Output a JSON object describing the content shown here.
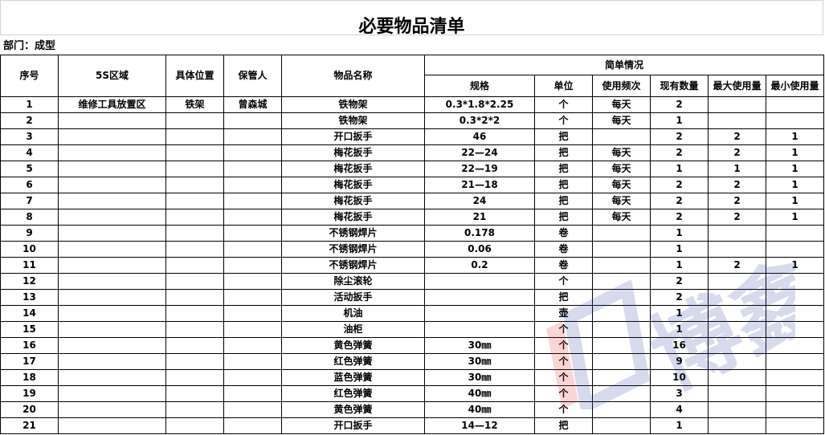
{
  "title": "必要物品清单",
  "department": "部门：成型",
  "headers": {
    "no": "序号",
    "area": "5S区域",
    "location": "具体位置",
    "keeper": "保管人",
    "name": "物品名称",
    "group": "简单情况",
    "spec": "规格",
    "unit": "单位",
    "freq": "使用频次",
    "qty": "现有数量",
    "max": "最大使用量",
    "min": "最小使用量"
  },
  "rows": [
    {
      "no": "1",
      "area": "维修工具放置区",
      "location": "铁架",
      "keeper": "曾森城",
      "name": "铁物架",
      "spec": "0.3*1.8*2.25",
      "unit": "个",
      "freq": "每天",
      "qty": "2",
      "max": "",
      "min": ""
    },
    {
      "no": "2",
      "area": "",
      "location": "",
      "keeper": "",
      "name": "铁物架",
      "spec": "0.3*2*2",
      "unit": "个",
      "freq": "每天",
      "qty": "1",
      "max": "",
      "min": ""
    },
    {
      "no": "3",
      "area": "",
      "location": "",
      "keeper": "",
      "name": "开口扳手",
      "spec": "46",
      "unit": "把",
      "freq": "",
      "qty": "2",
      "max": "2",
      "min": "1"
    },
    {
      "no": "4",
      "area": "",
      "location": "",
      "keeper": "",
      "name": "梅花扳手",
      "spec": "22—24",
      "unit": "把",
      "freq": "每天",
      "qty": "2",
      "max": "2",
      "min": "1"
    },
    {
      "no": "5",
      "area": "",
      "location": "",
      "keeper": "",
      "name": "梅花扳手",
      "spec": "22—19",
      "unit": "把",
      "freq": "每天",
      "qty": "1",
      "max": "1",
      "min": "1"
    },
    {
      "no": "6",
      "area": "",
      "location": "",
      "keeper": "",
      "name": "梅花扳手",
      "spec": "21—18",
      "unit": "把",
      "freq": "每天",
      "qty": "2",
      "max": "2",
      "min": "1"
    },
    {
      "no": "7",
      "area": "",
      "location": "",
      "keeper": "",
      "name": "梅花扳手",
      "spec": "24",
      "unit": "把",
      "freq": "每天",
      "qty": "2",
      "max": "2",
      "min": "1"
    },
    {
      "no": "8",
      "area": "",
      "location": "",
      "keeper": "",
      "name": "梅花扳手",
      "spec": "21",
      "unit": "把",
      "freq": "每天",
      "qty": "2",
      "max": "2",
      "min": "1"
    },
    {
      "no": "9",
      "area": "",
      "location": "",
      "keeper": "",
      "name": "不锈钢焊片",
      "spec": "0.178",
      "unit": "卷",
      "freq": "",
      "qty": "1",
      "max": "",
      "min": ""
    },
    {
      "no": "10",
      "area": "",
      "location": "",
      "keeper": "",
      "name": "不锈钢焊片",
      "spec": "0.06",
      "unit": "卷",
      "freq": "",
      "qty": "1",
      "max": "",
      "min": ""
    },
    {
      "no": "11",
      "area": "",
      "location": "",
      "keeper": "",
      "name": "不锈钢焊片",
      "spec": "0.2",
      "unit": "卷",
      "freq": "",
      "qty": "1",
      "max": "2",
      "min": "1"
    },
    {
      "no": "12",
      "area": "",
      "location": "",
      "keeper": "",
      "name": "除尘滚轮",
      "spec": "",
      "unit": "个",
      "freq": "",
      "qty": "2",
      "max": "",
      "min": ""
    },
    {
      "no": "13",
      "area": "",
      "location": "",
      "keeper": "",
      "name": "活动扳手",
      "spec": "",
      "unit": "把",
      "freq": "",
      "qty": "2",
      "max": "",
      "min": ""
    },
    {
      "no": "14",
      "area": "",
      "location": "",
      "keeper": "",
      "name": "机油",
      "spec": "",
      "unit": "壶",
      "freq": "",
      "qty": "1",
      "max": "",
      "min": ""
    },
    {
      "no": "15",
      "area": "",
      "location": "",
      "keeper": "",
      "name": "油柜",
      "spec": "",
      "unit": "个",
      "freq": "",
      "qty": "1",
      "max": "",
      "min": ""
    },
    {
      "no": "16",
      "area": "",
      "location": "",
      "keeper": "",
      "name": "黄色弹簧",
      "spec": "30㎜",
      "unit": "个",
      "freq": "",
      "qty": "16",
      "max": "",
      "min": ""
    },
    {
      "no": "17",
      "area": "",
      "location": "",
      "keeper": "",
      "name": "红色弹簧",
      "spec": "30㎜",
      "unit": "个",
      "freq": "",
      "qty": "9",
      "max": "",
      "min": ""
    },
    {
      "no": "18",
      "area": "",
      "location": "",
      "keeper": "",
      "name": "蓝色弹簧",
      "spec": "30㎜",
      "unit": "个",
      "freq": "",
      "qty": "10",
      "max": "",
      "min": ""
    },
    {
      "no": "19",
      "area": "",
      "location": "",
      "keeper": "",
      "name": "红色弹簧",
      "spec": "40㎜",
      "unit": "个",
      "freq": "",
      "qty": "3",
      "max": "",
      "min": ""
    },
    {
      "no": "20",
      "area": "",
      "location": "",
      "keeper": "",
      "name": "黄色弹簧",
      "spec": "40㎜",
      "unit": "个",
      "freq": "",
      "qty": "4",
      "max": "",
      "min": ""
    },
    {
      "no": "21",
      "area": "",
      "location": "",
      "keeper": "",
      "name": "开口扳手",
      "spec": "14—12",
      "unit": "把",
      "freq": "",
      "qty": "1",
      "max": "",
      "min": ""
    }
  ],
  "watermark": {
    "text": "博",
    "colors": {
      "red": "#e02020",
      "blue": "#2a3a9a"
    }
  }
}
